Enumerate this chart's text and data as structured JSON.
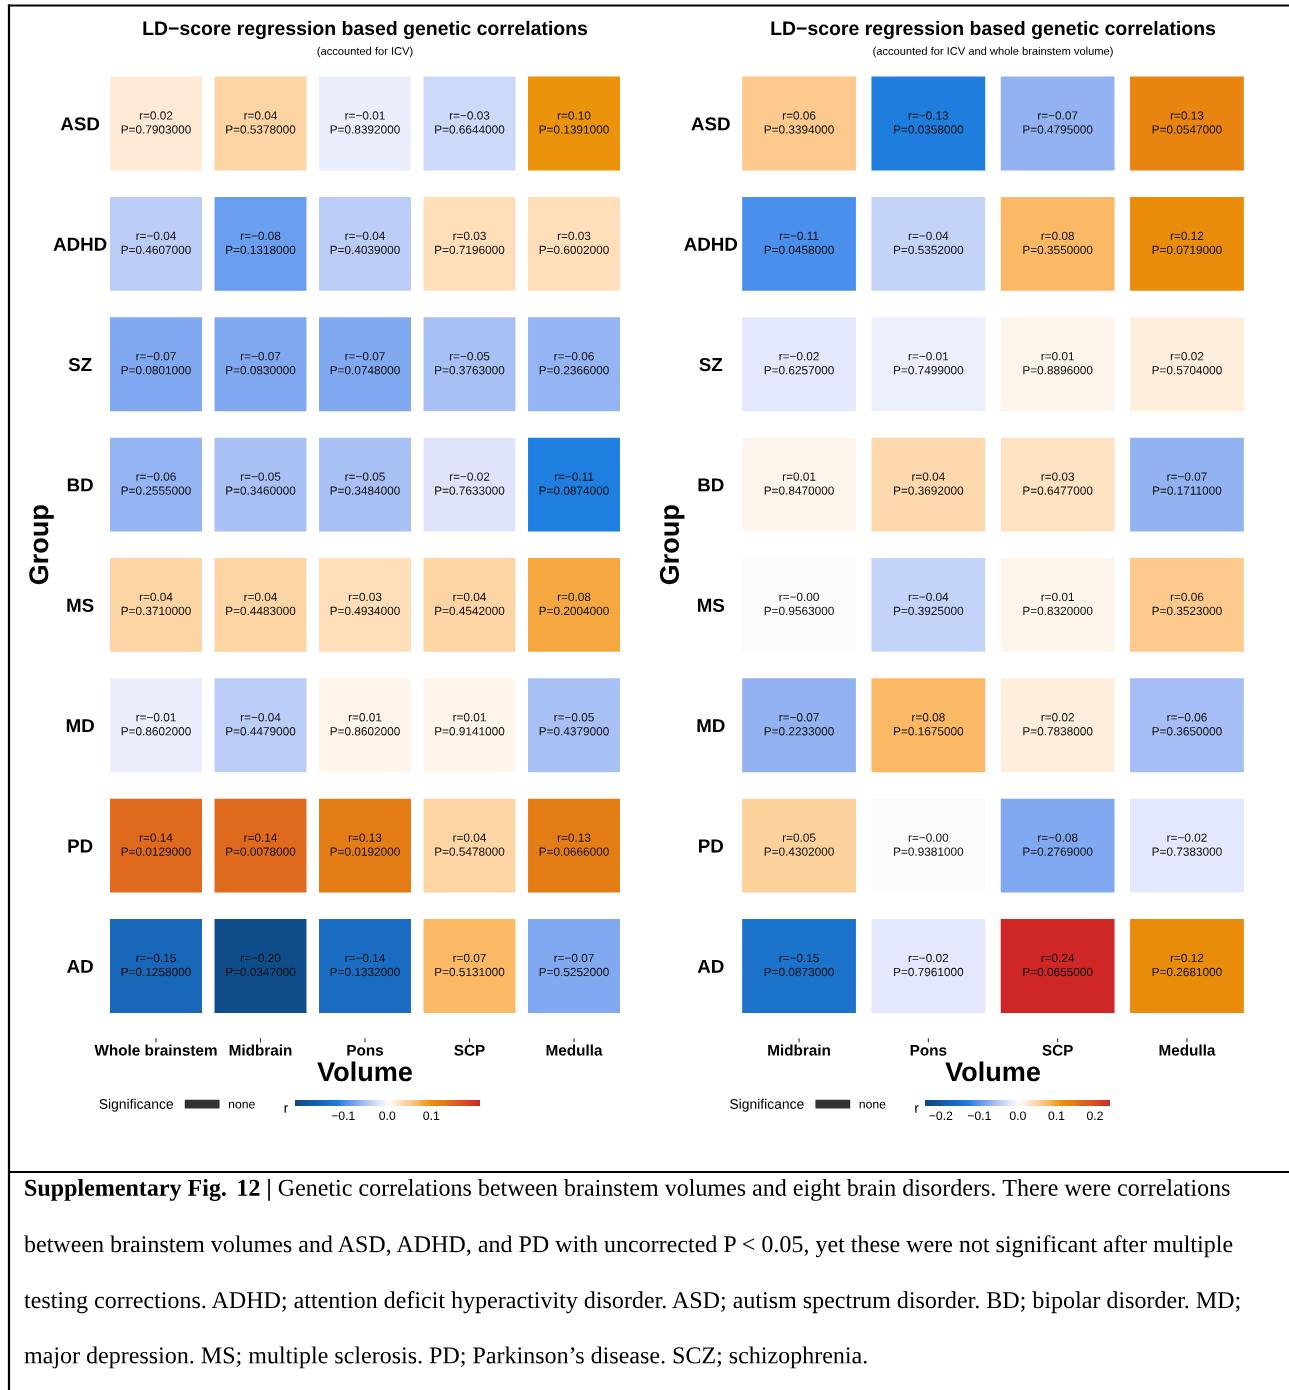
{
  "chart_data": [
    {
      "type": "heatmap",
      "title": "LD−score regression based genetic correlations",
      "subtitle": "(accounted for ICV)",
      "xlabel": "Volume",
      "ylabel": "Group",
      "clabel": "r",
      "legend_title": "Significance",
      "legend": "bottom",
      "series": [
        {
          "name": "none",
          "color": "#333333",
          "values": [
            null,
            null,
            null,
            null,
            null
          ]
        }
      ],
      "categories": [
        "Whole brainstem",
        "Midbrain",
        "Pons",
        "SCP",
        "Medulla"
      ],
      "y_categories": [
        "ASD",
        "ADHD",
        "SZ",
        "BD",
        "MS",
        "MD",
        "PD",
        "AD"
      ],
      "cells": [
        [
          0.02,
          0.04,
          -0.01,
          -0.03,
          0.1
        ],
        [
          -0.04,
          -0.08,
          -0.04,
          0.03,
          0.03
        ],
        [
          -0.07,
          -0.07,
          -0.07,
          -0.05,
          -0.06
        ],
        [
          -0.06,
          -0.05,
          -0.05,
          -0.02,
          -0.11
        ],
        [
          0.04,
          0.04,
          0.03,
          0.04,
          0.08
        ],
        [
          -0.01,
          -0.04,
          0.01,
          0.01,
          -0.05
        ],
        [
          0.14,
          0.14,
          0.13,
          0.04,
          0.13
        ],
        [
          -0.15,
          -0.2,
          -0.14,
          0.07,
          -0.07
        ]
      ],
      "cell_labels": [
        [
          "r=0.02\nP=0.7903000",
          "r=0.04\nP=0.5378000",
          "r=−0.01\nP=0.8392000",
          "r=−0.03\nP=0.6644000",
          "r=0.10\nP=0.1391000"
        ],
        [
          "r=−0.04\nP=0.4607000",
          "r=−0.08\nP=0.1318000",
          "r=−0.04\nP=0.4039000",
          "r=0.03\nP=0.7196000",
          "r=0.03\nP=0.6002000"
        ],
        [
          "r=−0.07\nP=0.0801000",
          "r=−0.07\nP=0.0830000",
          "r=−0.07\nP=0.0748000",
          "r=−0.05\nP=0.3763000",
          "r=−0.06\nP=0.2366000"
        ],
        [
          "r=−0.06\nP=0.2555000",
          "r=−0.05\nP=0.3460000",
          "r=−0.05\nP=0.3484000",
          "r=−0.02\nP=0.7633000",
          "r=−0.11\nP=0.0874000"
        ],
        [
          "r=0.04\nP=0.3710000",
          "r=0.04\nP=0.4483000",
          "r=0.03\nP=0.4934000",
          "r=0.04\nP=0.4542000",
          "r=0.08\nP=0.2004000"
        ],
        [
          "r=−0.01\nP=0.8602000",
          "r=−0.04\nP=0.4479000",
          "r=0.01\nP=0.8602000",
          "r=0.01\nP=0.9141000",
          "r=−0.05\nP=0.4379000"
        ],
        [
          "r=0.14\nP=0.0129000",
          "r=0.14\nP=0.0078000",
          "r=0.13\nP=0.0192000",
          "r=0.04\nP=0.5478000",
          "r=0.13\nP=0.0666000"
        ],
        [
          "r=−0.15\nP=0.1258000",
          "r=−0.20\nP=0.0347000",
          "r=−0.14\nP=0.1332000",
          "r=0.07\nP=0.5131000",
          "r=−0.07\nP=0.5252000"
        ]
      ],
      "clim": [
        -0.21,
        0.21
      ],
      "cticks": [
        {
          "value": -0.1,
          "label": "−0.1"
        },
        {
          "value": 0,
          "label": "0.0"
        },
        {
          "value": 0.1,
          "label": "0.1"
        }
      ]
    },
    {
      "type": "heatmap",
      "title": "LD−score regression based genetic correlations",
      "subtitle": "(accounted for ICV and whole brainstem volume)",
      "xlabel": "Volume",
      "ylabel": "Group",
      "clabel": "r",
      "legend_title": "Significance",
      "legend": "bottom",
      "series": [
        {
          "name": "none",
          "color": "#333333",
          "values": [
            null,
            null,
            null,
            null
          ]
        }
      ],
      "categories": [
        "Midbrain",
        "Pons",
        "SCP",
        "Medulla"
      ],
      "y_categories": [
        "ASD",
        "ADHD",
        "SZ",
        "BD",
        "MS",
        "MD",
        "PD",
        "AD"
      ],
      "cells": [
        [
          0.06,
          -0.13,
          -0.07,
          0.13
        ],
        [
          -0.11,
          -0.04,
          0.08,
          0.12
        ],
        [
          -0.02,
          -0.01,
          0.01,
          0.02
        ],
        [
          0.01,
          0.04,
          0.03,
          -0.07
        ],
        [
          0,
          -0.04,
          0.01,
          0.06
        ],
        [
          -0.07,
          0.08,
          0.02,
          -0.06
        ],
        [
          0.05,
          0,
          -0.08,
          -0.02
        ],
        [
          -0.15,
          -0.02,
          0.24,
          0.12
        ]
      ],
      "cell_labels": [
        [
          "r=0.06\nP=0.3394000",
          "r=−0.13\nP=0.0358000",
          "r=−0.07\nP=0.4795000",
          "r=0.13\nP=0.0547000"
        ],
        [
          "r=−0.11\nP=0.0458000",
          "r=−0.04\nP=0.5352000",
          "r=0.08\nP=0.3550000",
          "r=0.12\nP=0.0719000"
        ],
        [
          "r=−0.02\nP=0.6257000",
          "r=−0.01\nP=0.7499000",
          "r=0.01\nP=0.8896000",
          "r=0.02\nP=0.5704000"
        ],
        [
          "r=0.01\nP=0.8470000",
          "r=0.04\nP=0.3692000",
          "r=0.03\nP=0.6477000",
          "r=−0.07\nP=0.1711000"
        ],
        [
          "r=−0.00\nP=0.9563000",
          "r=−0.04\nP=0.3925000",
          "r=0.01\nP=0.8320000",
          "r=0.06\nP=0.3523000"
        ],
        [
          "r=−0.07\nP=0.2233000",
          "r=0.08\nP=0.1675000",
          "r=0.02\nP=0.7838000",
          "r=−0.06\nP=0.3650000"
        ],
        [
          "r=0.05\nP=0.4302000",
          "r=−0.00\nP=0.9381000",
          "r=−0.08\nP=0.2769000",
          "r=−0.02\nP=0.7383000"
        ],
        [
          "r=−0.15\nP=0.0873000",
          "r=−0.02\nP=0.7961000",
          "r=0.24\nP=0.0655000",
          "r=0.12\nP=0.2681000"
        ]
      ],
      "clim": [
        -0.24,
        0.24
      ],
      "cticks": [
        {
          "value": -0.2,
          "label": "−0.2"
        },
        {
          "value": -0.1,
          "label": "−0.1"
        },
        {
          "value": 0,
          "label": "0.0"
        },
        {
          "value": 0.1,
          "label": "0.1"
        },
        {
          "value": 0.2,
          "label": "0.2"
        }
      ],
      "annotations": [
        "Supplementary Fig. 12 |",
        "Genetic correlations between brainstem volumes and eight brain disorders. There were correlations between brainstem volumes and ASD, ADHD, and PD with uncorrected P < 0.05, yet these were not significant after multiple testing corrections. ADHD; attention deficit hyperactivity disorder. ASD; autism spectrum disorder. BD; bipolar disorder. MD; major depression. MS; multiple sclerosis. PD; Parkinson’s disease. SCZ; schizophrenia."
      ]
    }
  ]
}
